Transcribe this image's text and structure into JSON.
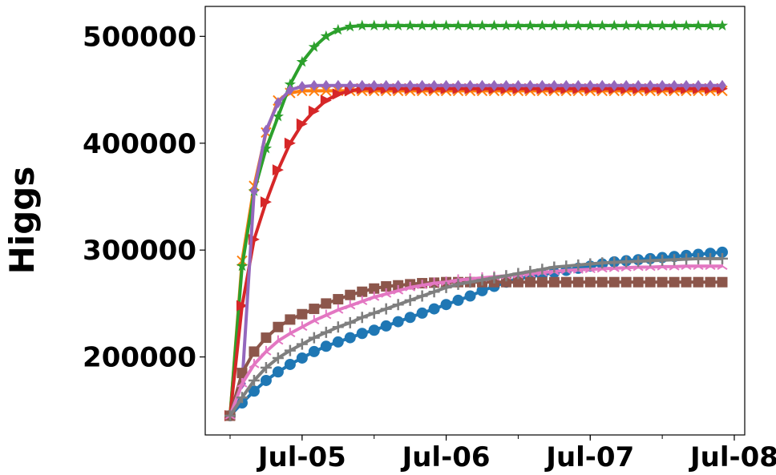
{
  "chart_data": {
    "type": "line",
    "title": "",
    "xlabel": "",
    "ylabel": "Higgs",
    "x_ticks": [
      "Jul-05",
      "Jul-06",
      "Jul-07",
      "Jul-08"
    ],
    "y_ticks": [
      200000,
      300000,
      400000,
      500000
    ],
    "ylim": [
      127000,
      528000
    ],
    "x": [
      "2005-01",
      "2005-02",
      "2005-03",
      "2005-04",
      "2005-05",
      "2005-06",
      "2005-07",
      "2005-08",
      "2005-09",
      "2005-10",
      "2005-11",
      "2005-12",
      "2006-01",
      "2006-02",
      "2006-03",
      "2006-04",
      "2006-05",
      "2006-06",
      "2006-07",
      "2006-08",
      "2006-09",
      "2006-10",
      "2006-11",
      "2006-12",
      "2007-01",
      "2007-02",
      "2007-03",
      "2007-04",
      "2007-05",
      "2007-06",
      "2007-07",
      "2007-08",
      "2007-09",
      "2007-10",
      "2007-11",
      "2007-12",
      "2008-01",
      "2008-02",
      "2008-03",
      "2008-04",
      "2008-05",
      "2008-06"
    ],
    "series": [
      {
        "color": "#1f77b4",
        "marker": "circle",
        "values": [
          145000,
          157000,
          168000,
          178000,
          186000,
          193000,
          199000,
          205000,
          210000,
          214000,
          218000,
          222000,
          225000,
          229000,
          233000,
          237000,
          241000,
          245000,
          249000,
          253000,
          257000,
          262000,
          266000,
          270000,
          273000,
          275000,
          277000,
          279000,
          281000,
          283000,
          285000,
          287000,
          289000,
          290000,
          291000,
          292000,
          293000,
          294000,
          295000,
          296000,
          297000,
          298000
        ]
      },
      {
        "color": "#ff7f0e",
        "marker": "x",
        "values": [
          145000,
          290000,
          360000,
          410000,
          440000,
          447000,
          449000,
          449000,
          449000,
          449000,
          449000,
          449000,
          449000,
          449000,
          449000,
          449000,
          449000,
          449000,
          449000,
          449000,
          449000,
          449000,
          449000,
          449000,
          449000,
          449000,
          449000,
          449000,
          449000,
          449000,
          449000,
          449000,
          449000,
          449000,
          449000,
          449000,
          449000,
          449000,
          449000,
          449000,
          449000,
          449000
        ]
      },
      {
        "color": "#2ca02c",
        "marker": "star",
        "values": [
          145000,
          285000,
          355000,
          395000,
          425000,
          455000,
          476000,
          490000,
          500000,
          506000,
          509000,
          510000,
          510000,
          510000,
          510000,
          510000,
          510000,
          510000,
          510000,
          510000,
          510000,
          510000,
          510000,
          510000,
          510000,
          510000,
          510000,
          510000,
          510000,
          510000,
          510000,
          510000,
          510000,
          510000,
          510000,
          510000,
          510000,
          510000,
          510000,
          510000,
          510000,
          510000
        ]
      },
      {
        "color": "#d62728",
        "marker": "triangle",
        "values": [
          145000,
          248000,
          310000,
          345000,
          375000,
          400000,
          418000,
          430000,
          440000,
          446000,
          449000,
          451000,
          451000,
          451000,
          451000,
          451000,
          451000,
          451000,
          451000,
          451000,
          451000,
          451000,
          451000,
          451000,
          451000,
          451000,
          451000,
          451000,
          451000,
          451000,
          451000,
          451000,
          451000,
          451000,
          451000,
          451000,
          451000,
          451000,
          451000,
          451000,
          451000,
          451000
        ]
      },
      {
        "color": "#9467bd",
        "marker": "diamond",
        "values": [
          145000,
          175000,
          355000,
          412000,
          438000,
          450000,
          453000,
          454000,
          454000,
          454000,
          454000,
          454000,
          454000,
          454000,
          454000,
          454000,
          454000,
          454000,
          454000,
          454000,
          454000,
          454000,
          454000,
          454000,
          454000,
          454000,
          454000,
          454000,
          454000,
          454000,
          454000,
          454000,
          454000,
          454000,
          454000,
          454000,
          454000,
          454000,
          454000,
          454000,
          454000,
          454000
        ]
      },
      {
        "color": "#8c564b",
        "marker": "square",
        "values": [
          145000,
          185000,
          205000,
          218000,
          228000,
          235000,
          240000,
          245000,
          250000,
          254000,
          258000,
          261000,
          264000,
          266000,
          267000,
          268000,
          269000,
          269500,
          270000,
          270000,
          270000,
          270000,
          270000,
          270000,
          270000,
          270000,
          270000,
          270000,
          270000,
          270000,
          270000,
          270000,
          270000,
          270000,
          270000,
          270000,
          270000,
          270000,
          270000,
          270000,
          270000,
          270000
        ]
      },
      {
        "color": "#e377c2",
        "marker": "tri_up",
        "values": [
          145000,
          175000,
          193000,
          205000,
          215000,
          222000,
          228000,
          234000,
          239000,
          244000,
          248000,
          252000,
          256000,
          259000,
          262000,
          265000,
          267000,
          269000,
          270000,
          272000,
          273000,
          274000,
          275000,
          276000,
          277000,
          278000,
          279000,
          280000,
          281000,
          281500,
          282000,
          282500,
          283000,
          283500,
          284000,
          284000,
          284500,
          284500,
          285000,
          285000,
          285000,
          285000
        ]
      },
      {
        "color": "#7f7f7f",
        "marker": "plus",
        "values": [
          145000,
          162000,
          178000,
          190000,
          199000,
          206000,
          212000,
          218000,
          223000,
          228000,
          232000,
          237000,
          241000,
          245000,
          249000,
          253000,
          257000,
          261000,
          265000,
          268000,
          270000,
          272000,
          274000,
          276000,
          278000,
          280000,
          282000,
          284000,
          285000,
          286000,
          287000,
          288000,
          288500,
          289000,
          289500,
          290000,
          290500,
          291000,
          291500,
          292000,
          292000,
          292000
        ]
      }
    ]
  }
}
